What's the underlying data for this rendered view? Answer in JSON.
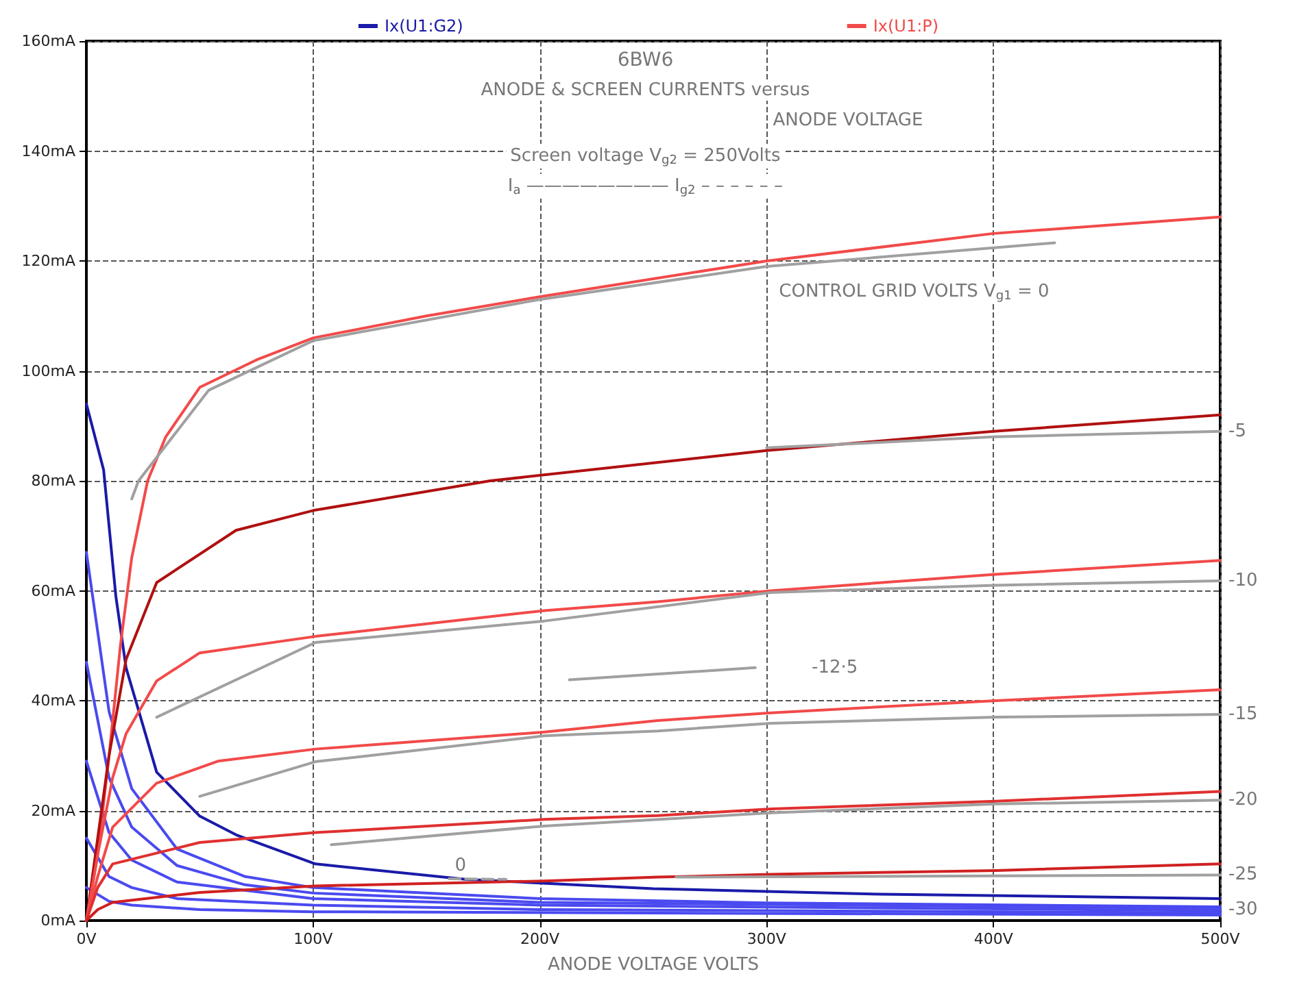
{
  "chart_data": {
    "type": "line",
    "title": "6BW6",
    "xlabel": "ANODE VOLTAGE VOLTS",
    "xlim": [
      0,
      500
    ],
    "ylim": [
      0,
      160
    ],
    "xticks": [
      {
        "value": 0,
        "label": "0V"
      },
      {
        "value": 100,
        "label": "100V"
      },
      {
        "value": 200,
        "label": "200V"
      },
      {
        "value": 300,
        "label": "300V"
      },
      {
        "value": 400,
        "label": "400V"
      },
      {
        "value": 500,
        "label": "500V"
      }
    ],
    "yticks": [
      {
        "value": 0,
        "label": "0mA"
      },
      {
        "value": 20,
        "label": "20mA"
      },
      {
        "value": 40,
        "label": "40mA"
      },
      {
        "value": 60,
        "label": "60mA"
      },
      {
        "value": 80,
        "label": "80mA"
      },
      {
        "value": 100,
        "label": "100mA"
      },
      {
        "value": 120,
        "label": "120mA"
      },
      {
        "value": 140,
        "label": "140mA"
      },
      {
        "value": 160,
        "label": "160mA"
      }
    ],
    "grid": true,
    "legend": "top",
    "marker": "none",
    "line_style": "solid",
    "series": [
      {
        "name": "Ix(U1:G2)",
        "color": "#1a1aa8",
        "x": [
          0,
          7.6,
          13,
          17.5,
          31,
          50,
          66,
          101,
          167,
          250,
          350,
          500
        ],
        "values": [
          94,
          82,
          59,
          46,
          27,
          19,
          15.6,
          10.3,
          7.5,
          5.8,
          4.8,
          4
        ]
      },
      {
        "color": "#4a4af0",
        "x": [
          0,
          10,
          20,
          40,
          70,
          100,
          200,
          300,
          500
        ],
        "values": [
          67,
          38,
          24,
          13,
          8,
          6,
          4,
          3.2,
          2.5
        ]
      },
      {
        "color": "#4a4af0",
        "x": [
          0,
          10,
          20,
          40,
          70,
          100,
          200,
          500
        ],
        "values": [
          47,
          26,
          17,
          10,
          6.5,
          5,
          3.3,
          2.2
        ]
      },
      {
        "color": "#4a4af0",
        "x": [
          0,
          10,
          20,
          40,
          100,
          200,
          500
        ],
        "values": [
          29,
          16,
          11,
          7,
          4,
          2.8,
          1.8
        ]
      },
      {
        "color": "#4a4af0",
        "x": [
          0,
          10,
          20,
          40,
          100,
          200,
          500
        ],
        "values": [
          15,
          8,
          6,
          4,
          2.8,
          2,
          1.4
        ]
      },
      {
        "color": "#4a4af0",
        "x": [
          0,
          10,
          20,
          50,
          100,
          500
        ],
        "values": [
          6,
          3.5,
          2.8,
          2,
          1.6,
          1
        ]
      },
      {
        "name": "Ix(U1:P)",
        "color": "#f24a4a",
        "x": [
          0,
          5,
          10,
          15,
          20,
          27,
          35,
          50,
          75,
          100,
          150,
          200,
          300,
          400,
          500
        ],
        "values": [
          0,
          12,
          30,
          50,
          66,
          80,
          88,
          97,
          102,
          106,
          110,
          113.5,
          120,
          125,
          128
        ]
      },
      {
        "color": "#b01010",
        "x": [
          0,
          5,
          10,
          17.5,
          31,
          66,
          100,
          178,
          300,
          400,
          500
        ],
        "values": [
          0,
          15,
          30,
          47.5,
          61.5,
          71,
          74.6,
          80,
          85.5,
          89,
          92
        ]
      },
      {
        "color": "#f24a4a",
        "x": [
          0,
          5,
          11.6,
          17.5,
          31,
          50,
          101,
          202,
          252,
          302,
          401,
          500
        ],
        "values": [
          0,
          12,
          26,
          34,
          43.6,
          48.7,
          51.7,
          56.4,
          58,
          60,
          63,
          65.5
        ]
      },
      {
        "color": "#f24a4a",
        "x": [
          0,
          5,
          11.6,
          31,
          58,
          101,
          202,
          252,
          302,
          401,
          500
        ],
        "values": [
          0,
          8,
          17,
          25,
          29,
          31.2,
          34.3,
          36.4,
          37.8,
          40,
          42
        ]
      },
      {
        "color": "#e03030",
        "x": [
          0,
          5,
          11.6,
          50,
          101,
          202,
          252,
          302,
          401,
          500
        ],
        "values": [
          0,
          6,
          10.3,
          14.2,
          16,
          18.4,
          19.1,
          20.3,
          21.7,
          23.5
        ]
      },
      {
        "color": "#d02020",
        "x": [
          0,
          5,
          11.6,
          50,
          101,
          202,
          252,
          302,
          401,
          500
        ],
        "values": [
          0,
          2,
          3.3,
          5.1,
          6.3,
          7.2,
          7.9,
          8.4,
          9.1,
          10.3
        ]
      },
      {
        "color": "#a0a0a0",
        "x": [
          20,
          23,
          54,
          100,
          200,
          300,
          427
        ],
        "values": [
          76.7,
          80,
          96.5,
          105.5,
          113,
          119,
          123.3
        ]
      },
      {
        "color": "#a0a0a0",
        "x": [
          300,
          400,
          500
        ],
        "values": [
          86,
          88,
          89
        ]
      },
      {
        "color": "#a0a0a0",
        "x": [
          31,
          101,
          202,
          302,
          401,
          500
        ],
        "values": [
          37,
          50.6,
          54.5,
          59.7,
          61,
          61.8
        ]
      },
      {
        "color": "#a0a0a0",
        "x": [
          213,
          295
        ],
        "values": [
          43.8,
          46
        ]
      },
      {
        "color": "#a0a0a0",
        "x": [
          50,
          101,
          202,
          252,
          302,
          401,
          500
        ],
        "values": [
          22.6,
          28.9,
          33.6,
          34.5,
          35.9,
          37,
          37.5
        ]
      },
      {
        "color": "#a0a0a0",
        "x": [
          108,
          202,
          302,
          401,
          500
        ],
        "values": [
          13.8,
          17.2,
          19.6,
          21.2,
          21.9
        ]
      },
      {
        "color": "#a0a0a0",
        "x": [
          260,
          500
        ],
        "values": [
          7.9,
          8.3
        ]
      },
      {
        "color": "#a0a0a0",
        "line_style": "dashed",
        "x": [
          160,
          185
        ],
        "values": [
          7.6,
          7.5
        ]
      }
    ],
    "annotations": [
      "ANODE & SCREEN CURRENTS versus",
      "ANODE VOLTAGE",
      "Screen voltage V$_{g2}$ = 250Volts",
      "I$_{a}$ ———————— I$_{g2}$ – – – – – –",
      "CONTROL GRID VOLTS V$_{g1}$ = 0",
      {
        "text": "-5",
        "x": 500,
        "y": 89
      },
      {
        "text": "-10",
        "x": 500,
        "y": 61.8
      },
      {
        "text": "-12·5",
        "x": 330,
        "y": 46
      },
      {
        "text": "-15",
        "x": 500,
        "y": 37.5
      },
      {
        "text": "-20",
        "x": 500,
        "y": 21.9
      },
      {
        "text": "-25",
        "x": 500,
        "y": 8.3
      },
      {
        "text": "-30",
        "x": 500,
        "y": 2
      },
      {
        "text": "0",
        "x": 165,
        "y": 10
      }
    ]
  }
}
